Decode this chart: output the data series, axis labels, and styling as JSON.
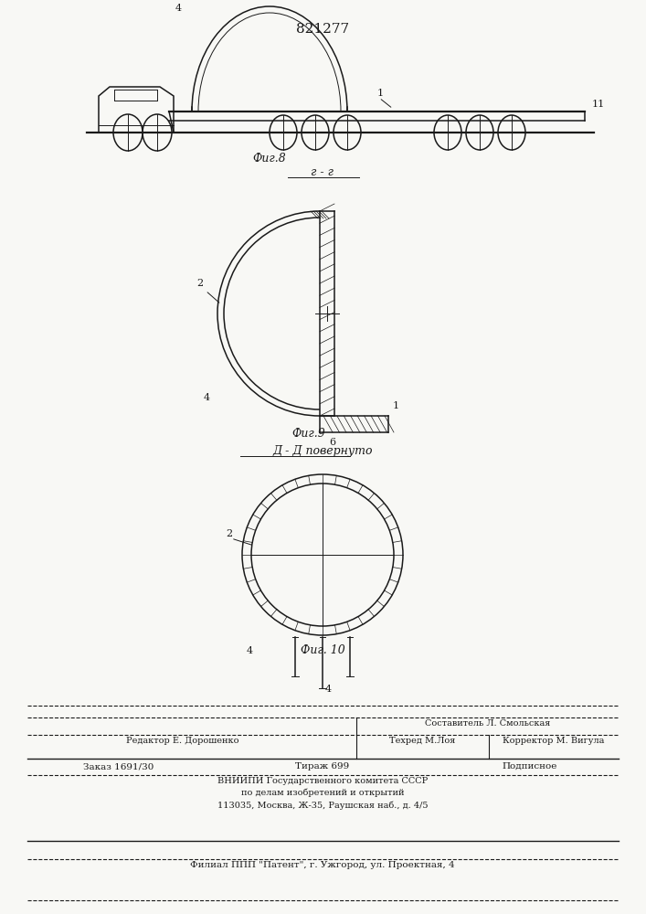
{
  "title": "821277",
  "fig8_label": "Фиг.8",
  "fig9_label": "Фиг.9",
  "fig10_label": "Фиг. 10",
  "section_rr": "г - г",
  "section_dd": "Д - Д повернуто",
  "bg_color": "#f8f8f5",
  "line_color": "#1a1a1a"
}
